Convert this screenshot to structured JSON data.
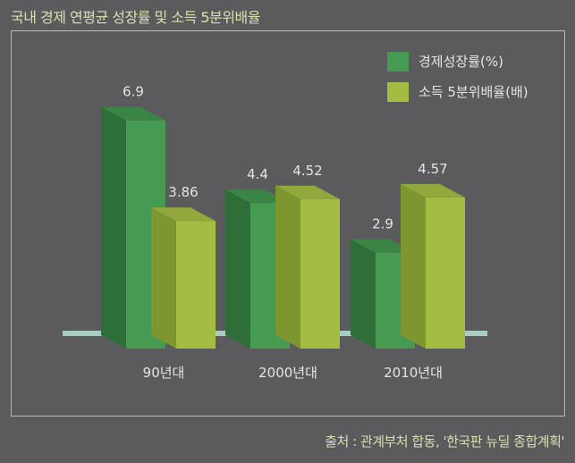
{
  "chart_data": {
    "type": "bar",
    "title": "국내 경제 연평균 성장률 및 소득 5분위배율",
    "categories": [
      "90년대",
      "2000년대",
      "2010년대"
    ],
    "series": [
      {
        "name": "경제성장률(%)",
        "values": [
          6.9,
          4.4,
          2.9
        ],
        "value_labels": [
          "6.9",
          "4.4",
          "2.9"
        ]
      },
      {
        "name": "소득 5분위배율(배)",
        "values": [
          3.86,
          4.52,
          4.57
        ],
        "value_labels": [
          "3.86",
          "4.52",
          "4.57"
        ]
      }
    ],
    "ylim": [
      0,
      8
    ],
    "legend_position": "top-right",
    "grid": false
  },
  "source": "출처 : 관계부처 합동, '한국판 뉴딜 종합계획'",
  "colors": {
    "background": "#5b5b5d",
    "series1_front": "#469a52",
    "series1_side": "#2d6e39",
    "series1_top": "#3a8446",
    "series2_front": "#a2bd42",
    "series2_side": "#7d9630",
    "series2_top": "#90a93a",
    "baseline": "#a9ccc0",
    "text": "#d9dfb0",
    "value_text": "#e4e4e4"
  }
}
